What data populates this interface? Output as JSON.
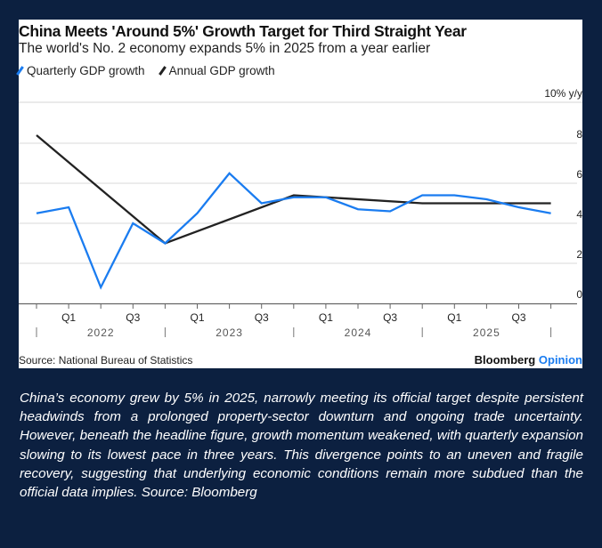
{
  "chart_data": {
    "type": "line",
    "title": "China Meets 'Around 5%' Growth Target for Third Straight Year",
    "subtitle": "The world's No. 2 economy expands 5% in 2025 from a year earlier",
    "ylabel": "10% y/y",
    "ylim": [
      0,
      10
    ],
    "yticks": [
      "8",
      "6",
      "4",
      "2",
      "0"
    ],
    "grid": true,
    "legend_placement": "top-left",
    "x_quarter_labels": [
      "Q1",
      "Q3",
      "Q1",
      "Q3",
      "Q1",
      "Q3",
      "Q1",
      "Q3"
    ],
    "x_year_labels": [
      "2022",
      "2023",
      "2024",
      "2025"
    ],
    "series": [
      {
        "name": "Quarterly GDP growth",
        "color": "#1a7cf0",
        "x": [
          "2021Q4",
          "2022Q1",
          "2022Q2",
          "2022Q3",
          "2022Q4",
          "2023Q1",
          "2023Q2",
          "2023Q3",
          "2023Q4",
          "2024Q1",
          "2024Q2",
          "2024Q3",
          "2024Q4",
          "2025Q1",
          "2025Q2",
          "2025Q3",
          "2025Q4"
        ],
        "xi": [
          0,
          1,
          2,
          3,
          4,
          5,
          6,
          7,
          8,
          9,
          10,
          11,
          12,
          13,
          14,
          15,
          16
        ],
        "values": [
          4.5,
          4.8,
          0.8,
          4.0,
          3.0,
          4.5,
          6.5,
          5.0,
          5.3,
          5.3,
          4.7,
          4.6,
          5.4,
          5.4,
          5.2,
          4.8,
          4.5
        ]
      },
      {
        "name": "Annual GDP growth",
        "color": "#222222",
        "x": [
          "2021",
          "2022",
          "2023",
          "2024",
          "2025"
        ],
        "xi": [
          0,
          4,
          8,
          12,
          16
        ],
        "values": [
          8.4,
          3.0,
          5.4,
          5.0,
          5.0
        ]
      }
    ]
  },
  "source": "Source: National Bureau of Statistics",
  "brand": {
    "name": "Bloomberg",
    "suffix": "Opinion"
  },
  "caption": "China’s economy grew by 5% in 2025, narrowly meeting its official target despite persistent headwinds from a prolonged property-sector downturn and ongoing trade uncertainty. However, beneath the headline figure, growth momentum weakened, with quarterly expansion slowing to its lowest pace in three years. This divergence points to an uneven and fragile recovery, suggesting that underlying economic conditions remain more subdued than the official data implies. Source: Bloomberg"
}
